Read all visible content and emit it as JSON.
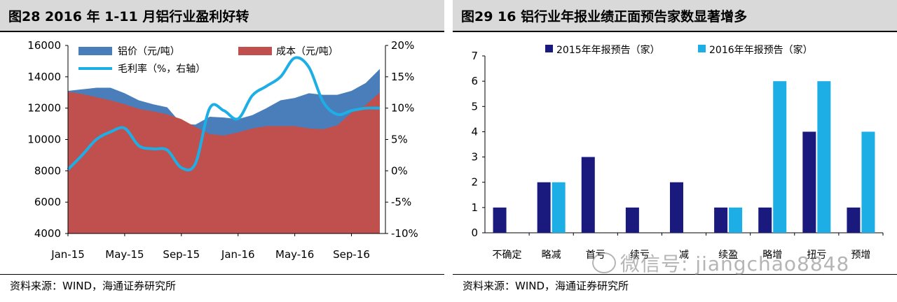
{
  "figure28": {
    "title": "图28 2016 年 1-11 月铝行业盈利好转",
    "source": "资料来源：WIND，海通证券研究所",
    "chart_data": {
      "type": "area",
      "x": [
        "Jan-15",
        "Feb-15",
        "Mar-15",
        "Apr-15",
        "May-15",
        "Jun-15",
        "Jul-15",
        "Aug-15",
        "Sep-15",
        "Oct-15",
        "Nov-15",
        "Dec-15",
        "Jan-16",
        "Feb-16",
        "Mar-16",
        "Apr-16",
        "May-16",
        "Jun-16",
        "Jul-16",
        "Aug-16",
        "Sep-16",
        "Oct-16",
        "Nov-16"
      ],
      "xtick_labels": [
        "Jan-15",
        "May-15",
        "Sep-15",
        "Jan-16",
        "May-16",
        "Sep-16"
      ],
      "series": [
        {
          "name": "铝价（元/吨）",
          "kind": "area",
          "axis": "left",
          "color": "#4a7ebb",
          "values": [
            13100,
            13200,
            13300,
            13300,
            12950,
            12500,
            12250,
            12050,
            11000,
            10950,
            11450,
            11400,
            11300,
            11550,
            12000,
            12500,
            12650,
            12950,
            12850,
            12850,
            13100,
            13600,
            14500
          ]
        },
        {
          "name": "成本（元/吨）",
          "kind": "area",
          "axis": "left",
          "color": "#c0504d",
          "values": [
            13050,
            12900,
            12700,
            12500,
            12250,
            11950,
            11800,
            11600,
            11300,
            10800,
            10350,
            10250,
            10450,
            10700,
            10850,
            10850,
            10850,
            10700,
            10650,
            10900,
            11700,
            12200,
            13000
          ]
        },
        {
          "name": "毛利率（%，右轴）",
          "kind": "line",
          "axis": "right",
          "color": "#1eaee6",
          "values": [
            0.2,
            2.5,
            5.0,
            6.2,
            6.8,
            4.0,
            3.5,
            3.3,
            0.5,
            1.2,
            10.0,
            9.6,
            8.3,
            12.0,
            13.5,
            15.0,
            18.0,
            16.5,
            11.0,
            9.0,
            9.6,
            10.0,
            10.0
          ]
        }
      ],
      "ylim_left": [
        4000,
        16000
      ],
      "yticks_left": [
        "16000",
        "14000",
        "12000",
        "10000",
        "8000",
        "6000",
        "4000"
      ],
      "ylim_right": [
        -10,
        20
      ],
      "yticks_right": [
        "20%",
        "15%",
        "10%",
        "5%",
        "0%",
        "-5%",
        "-10%"
      ],
      "legend": "top-left"
    }
  },
  "figure29": {
    "title": "图29 16 铝行业年报业绩正面预告家数显著增多",
    "source": "资料来源：WIND，海通证券研究所",
    "chart_data": {
      "type": "bar",
      "categories": [
        "不确定",
        "略减",
        "首亏",
        "续亏",
        "减",
        "续盈",
        "略增",
        "扭亏",
        "预增"
      ],
      "series": [
        {
          "name": "2015年年报预告（家）",
          "color": "#1a1a7e",
          "values": [
            1,
            2,
            3,
            1,
            2,
            1,
            1,
            4,
            1
          ]
        },
        {
          "name": "2016年年报预告（家）",
          "color": "#1eaee6",
          "values": [
            0,
            2,
            0,
            0,
            0,
            1,
            6,
            6,
            4
          ]
        }
      ],
      "ylim": [
        0,
        7
      ],
      "yticks": [
        "7",
        "6",
        "5",
        "4",
        "3",
        "2",
        "1",
        "0"
      ],
      "legend": "top-center"
    }
  },
  "watermark": {
    "text": "微信号: jiangchao8848"
  }
}
